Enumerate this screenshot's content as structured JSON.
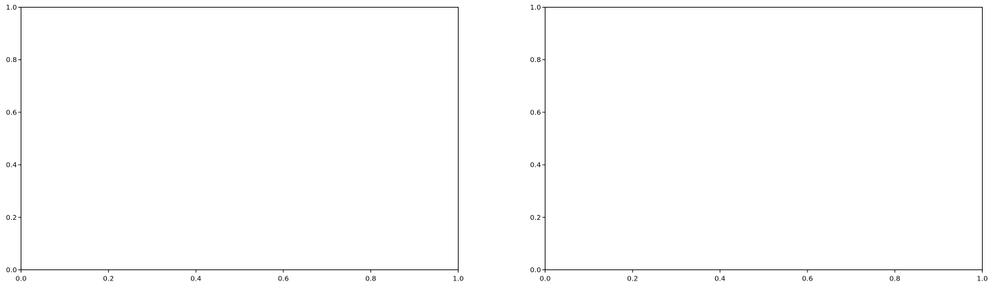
{
  "chart_data": [
    {
      "type": "line",
      "series": [],
      "title": "",
      "xlabel": "",
      "ylabel": "",
      "xlim": [
        0,
        1
      ],
      "ylim": [
        0,
        1
      ],
      "xticks": [
        "0.0",
        "0.2",
        "0.4",
        "0.6",
        "0.8",
        "1.0"
      ],
      "yticks": [
        "0.0",
        "0.2",
        "0.4",
        "0.6",
        "0.8",
        "1.0"
      ],
      "grid": false,
      "legend": "none"
    },
    {
      "type": "line",
      "series": [],
      "title": "",
      "xlabel": "",
      "ylabel": "",
      "xlim": [
        0,
        1
      ],
      "ylim": [
        0,
        1
      ],
      "xticks": [
        "0.0",
        "0.2",
        "0.4",
        "0.6",
        "0.8",
        "1.0"
      ],
      "yticks": [
        "0.0",
        "0.2",
        "0.4",
        "0.6",
        "0.8",
        "1.0"
      ],
      "grid": false,
      "legend": "none"
    }
  ],
  "colors": {
    "axes": "#000000",
    "background": "#ffffff"
  }
}
